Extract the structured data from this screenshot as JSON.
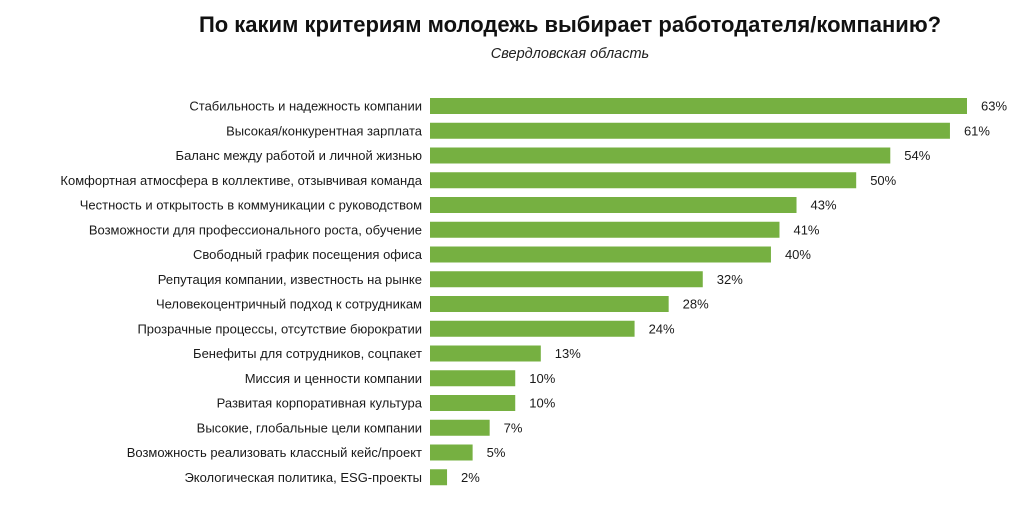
{
  "chart_data": {
    "type": "bar",
    "orientation": "horizontal",
    "title": "По каким критериям молодежь выбирает работодателя/компанию?",
    "subtitle": "Свердловская область",
    "xlabel": "",
    "ylabel": "",
    "value_suffix": "%",
    "bar_color": "#76b041",
    "grid": false,
    "legend": "none",
    "xlim": [
      0,
      63
    ],
    "categories": [
      "Стабильность и надежность компании",
      "Высокая/конкурентная зарплата",
      "Баланс между работой и личной жизнью",
      "Комфортная атмосфера в коллективе, отзывчивая команда",
      "Честность и открытость в коммуникации с руководством",
      "Возможности для профессионального роста, обучение",
      "Свободный график посещения офиса",
      "Репутация компании, известность на рынке",
      "Человекоцентричный подход к сотрудникам",
      "Прозрачные процессы, отсутствие бюрократии",
      "Бенефиты для сотрудников, соцпакет",
      "Миссия и ценности компании",
      "Развитая корпоративная культура",
      "Высокие, глобальные цели компании",
      "Возможность реализовать классный кейс/проект",
      "Экологическая политика, ESG-проекты"
    ],
    "values": [
      63,
      61,
      54,
      50,
      43,
      41,
      40,
      32,
      28,
      24,
      13,
      10,
      10,
      7,
      5,
      2
    ]
  }
}
